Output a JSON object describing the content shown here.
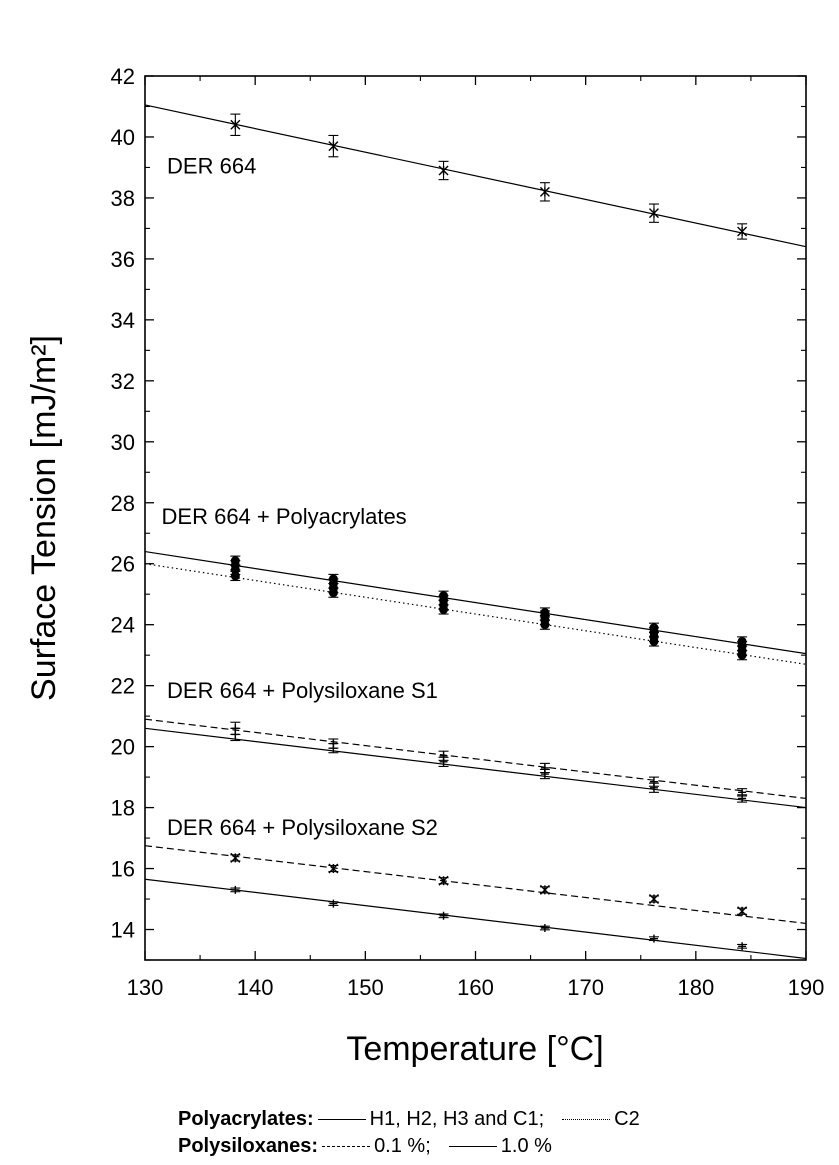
{
  "chart_data": {
    "type": "scatter",
    "xlabel": "Temperature [°C]",
    "ylabel": "Surface Tension [mJ/m²]",
    "xlim": [
      130,
      190
    ],
    "ylim": [
      13,
      42
    ],
    "x_ticks": [
      130,
      140,
      150,
      160,
      170,
      180,
      190
    ],
    "y_ticks": [
      14,
      16,
      18,
      20,
      22,
      24,
      26,
      28,
      30,
      32,
      34,
      36,
      38,
      40,
      42
    ],
    "grid": false,
    "annotations": [
      {
        "text": "DER 664",
        "x": 132,
        "y": 38.8
      },
      {
        "text": "DER 664 + Polyacrylates",
        "x": 131.5,
        "y": 27.3
      },
      {
        "text": "DER 664 + Polysiloxane S1",
        "x": 132,
        "y": 21.6
      },
      {
        "text": "DER 664 + Polysiloxane S2",
        "x": 132,
        "y": 17.1
      }
    ],
    "series": [
      {
        "marker": "x",
        "line_style": "none",
        "x": [
          138.2,
          147.1,
          157.1,
          166.3,
          176.2,
          184.2
        ],
        "y": [
          40.4,
          39.7,
          38.9,
          38.2,
          37.5,
          36.9
        ],
        "err": [
          0.35,
          0.35,
          0.3,
          0.3,
          0.3,
          0.25
        ]
      },
      {
        "marker": "dot",
        "line_style": "none",
        "x": [
          138.2,
          138.2,
          138.2,
          138.2,
          147.1,
          147.1,
          147.1,
          147.1,
          157.1,
          157.1,
          157.1,
          157.1,
          166.3,
          166.3,
          166.3,
          166.3,
          176.2,
          176.2,
          176.2,
          176.2,
          184.2,
          184.2,
          184.2,
          184.2
        ],
        "y": [
          26.1,
          25.95,
          25.8,
          25.6,
          25.5,
          25.35,
          25.2,
          25.05,
          24.95,
          24.8,
          24.65,
          24.5,
          24.4,
          24.3,
          24.15,
          24.0,
          23.9,
          23.75,
          23.6,
          23.45,
          23.45,
          23.3,
          23.15,
          23.0
        ],
        "err": [
          0.15,
          0.15,
          0.15,
          0.15,
          0.15,
          0.15,
          0.15,
          0.15,
          0.15,
          0.15,
          0.15,
          0.15,
          0.15,
          0.15,
          0.15,
          0.15,
          0.15,
          0.15,
          0.15,
          0.15,
          0.15,
          0.15,
          0.15,
          0.15
        ]
      },
      {
        "marker": "plus",
        "line_style": "none",
        "x": [
          138.2,
          147.1,
          157.1,
          166.3,
          176.2,
          184.2
        ],
        "y": [
          20.6,
          20.1,
          19.7,
          19.3,
          18.85,
          18.5
        ],
        "err": [
          0.2,
          0.15,
          0.15,
          0.15,
          0.15,
          0.12
        ]
      },
      {
        "marker": "plus",
        "line_style": "none",
        "x": [
          138.2,
          147.1,
          157.1,
          166.3,
          176.2,
          184.2
        ],
        "y": [
          20.4,
          19.95,
          19.5,
          19.1,
          18.65,
          18.3
        ],
        "err": [
          0.2,
          0.15,
          0.15,
          0.15,
          0.15,
          0.12
        ]
      },
      {
        "marker": "x",
        "line_style": "none",
        "x": [
          138.2,
          147.1,
          157.1,
          166.3,
          176.2,
          184.2
        ],
        "y": [
          16.35,
          16.0,
          15.6,
          15.3,
          15.0,
          14.6
        ],
        "err": [
          0.1,
          0.1,
          0.1,
          0.1,
          0.1,
          0.1
        ]
      },
      {
        "marker": "plus",
        "line_style": "none",
        "x": [
          138.2,
          147.1,
          157.1,
          166.3,
          176.2,
          184.2
        ],
        "y": [
          15.3,
          14.85,
          14.45,
          14.05,
          13.7,
          13.45
        ],
        "err": [
          0.06,
          0.06,
          0.06,
          0.06,
          0.06,
          0.06
        ]
      }
    ],
    "fit_lines": [
      {
        "style": "solid",
        "x": [
          130,
          190
        ],
        "y": [
          41.05,
          36.4
        ]
      },
      {
        "style": "solid",
        "x": [
          130,
          190
        ],
        "y": [
          26.4,
          23.05
        ]
      },
      {
        "style": "dotted",
        "x": [
          130,
          190
        ],
        "y": [
          26.0,
          22.7
        ]
      },
      {
        "style": "dashed",
        "x": [
          130,
          190
        ],
        "y": [
          20.9,
          18.3
        ]
      },
      {
        "style": "solid",
        "x": [
          130,
          190
        ],
        "y": [
          20.6,
          18.0
        ]
      },
      {
        "style": "dashed",
        "x": [
          130,
          190
        ],
        "y": [
          16.75,
          14.2
        ]
      },
      {
        "style": "solid",
        "x": [
          130,
          190
        ],
        "y": [
          15.65,
          13.05
        ]
      }
    ]
  },
  "legend": {
    "row1": {
      "head": "Polyacrylates:",
      "item1": "H1, H2, H3 and C1;",
      "item2": "C2"
    },
    "row2": {
      "head": "Polysiloxanes:",
      "item1": "0.1 %;",
      "item2": "1.0 %"
    }
  }
}
